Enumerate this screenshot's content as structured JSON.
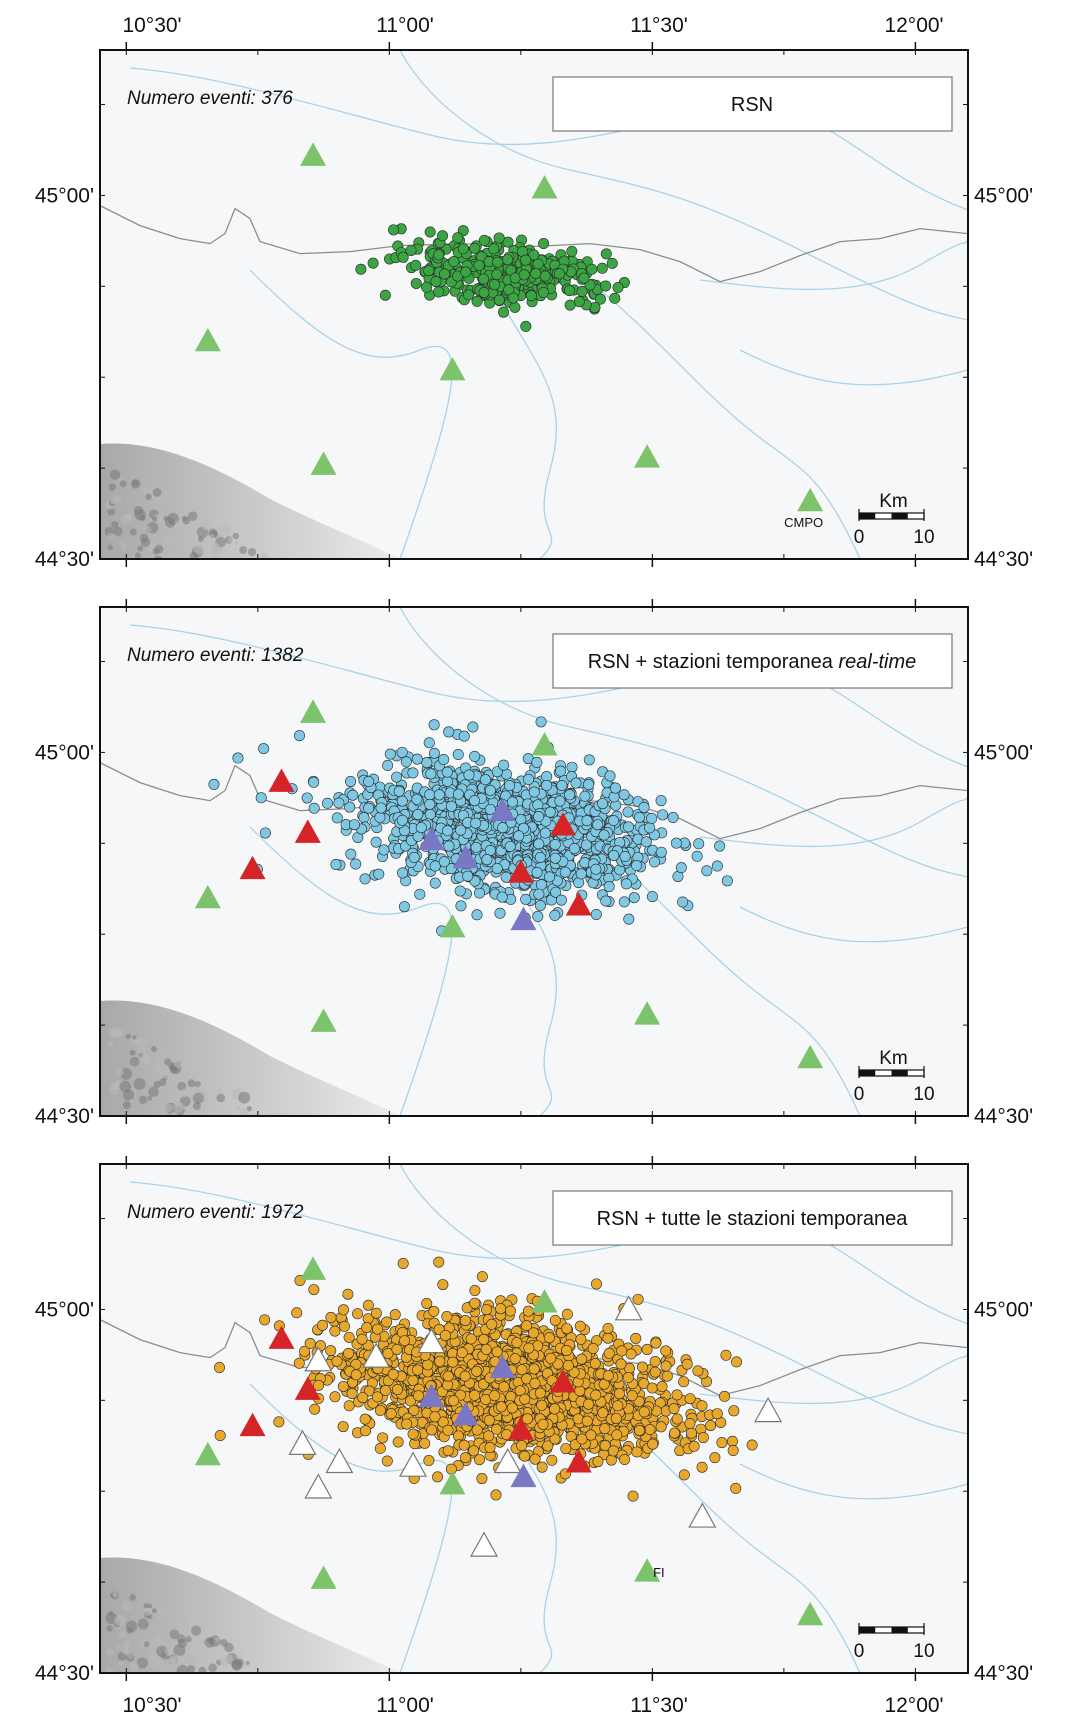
{
  "figure": {
    "axis_labels": {
      "top_longitudes": [
        "10°30'",
        "11°00'",
        "11°30'",
        "12°00'"
      ],
      "bottom_longitudes": [
        "10°30'",
        "11°00'",
        "11°30'",
        "12°00'"
      ],
      "latitudes": [
        "45°00'",
        "44°30'"
      ]
    },
    "extent": {
      "lon_min": 10.45,
      "lon_max": 12.1,
      "lat_min": 44.5,
      "lat_max": 45.2
    },
    "colors": {
      "rsn_station": "#7cc36b",
      "realtime_temporary": "#d42427",
      "other_realtime": "#7a78c4",
      "offline_temporary": "#ffffff",
      "panel1_events": "#3aa542",
      "panel2_events": "#7ec8e3",
      "panel3_events": "#e8a82c",
      "rivers": "#a9d3ea",
      "borders": "#8c8c8c"
    },
    "scale_bar": {
      "title": "Km",
      "ticks": [
        "0",
        "10"
      ]
    },
    "panels": [
      {
        "events_label": "Numero eventi: 376",
        "title_parts": [
          "RSN"
        ],
        "title_italic": "",
        "show_scale_title": true,
        "station_labels": [
          {
            "text": "CMPO",
            "station": "s7"
          }
        ],
        "event_color": "#3aa542",
        "event_count_drawn": 376,
        "show_realtime": false,
        "show_offline": false
      },
      {
        "events_label": "Numero eventi: 1382",
        "title_parts": [
          "RSN + stazioni temporanea "
        ],
        "title_italic": "real-time",
        "show_scale_title": true,
        "station_labels": [],
        "event_color": "#7ec8e3",
        "event_count_drawn": 1382,
        "show_realtime": true,
        "show_offline": false
      },
      {
        "events_label": "Numero eventi: 1972",
        "title_parts": [
          "RSN + tutte le stazioni temporanea"
        ],
        "title_italic": "",
        "show_scale_title": false,
        "station_labels": [
          {
            "text": "FI",
            "station": "s6"
          }
        ],
        "event_color": "#e8a82c",
        "event_count_drawn": 1972,
        "show_realtime": true,
        "show_offline": true
      }
    ],
    "stations_rsn": [
      {
        "id": "s1",
        "lon": 10.855,
        "lat": 45.055
      },
      {
        "id": "s2",
        "lon": 11.295,
        "lat": 45.01
      },
      {
        "id": "s3",
        "lon": 10.655,
        "lat": 44.8
      },
      {
        "id": "s4",
        "lon": 11.12,
        "lat": 44.76
      },
      {
        "id": "s5",
        "lon": 10.875,
        "lat": 44.63
      },
      {
        "id": "s6",
        "lon": 11.49,
        "lat": 44.64
      },
      {
        "id": "s7",
        "lon": 11.8,
        "lat": 44.58
      }
    ],
    "stations_realtime": [
      {
        "lon": 10.795,
        "lat": 44.96
      },
      {
        "lon": 10.74,
        "lat": 44.84
      },
      {
        "lon": 10.845,
        "lat": 44.89
      },
      {
        "lon": 11.33,
        "lat": 44.9
      },
      {
        "lon": 11.36,
        "lat": 44.79
      },
      {
        "lon": 11.25,
        "lat": 44.835
      }
    ],
    "stations_other": [
      {
        "lon": 11.215,
        "lat": 44.92
      },
      {
        "lon": 11.08,
        "lat": 44.88
      },
      {
        "lon": 11.145,
        "lat": 44.855
      },
      {
        "lon": 11.255,
        "lat": 44.77
      }
    ],
    "stations_offline": [
      {
        "lon": 11.455,
        "lat": 45.0
      },
      {
        "lon": 11.08,
        "lat": 44.955
      },
      {
        "lon": 10.975,
        "lat": 44.935
      },
      {
        "lon": 10.865,
        "lat": 44.93
      },
      {
        "lon": 11.72,
        "lat": 44.86
      },
      {
        "lon": 10.835,
        "lat": 44.815
      },
      {
        "lon": 10.905,
        "lat": 44.79
      },
      {
        "lon": 11.045,
        "lat": 44.785
      },
      {
        "lon": 10.865,
        "lat": 44.755
      },
      {
        "lon": 11.225,
        "lat": 44.79
      },
      {
        "lon": 11.595,
        "lat": 44.715
      },
      {
        "lon": 11.18,
        "lat": 44.675
      }
    ]
  }
}
